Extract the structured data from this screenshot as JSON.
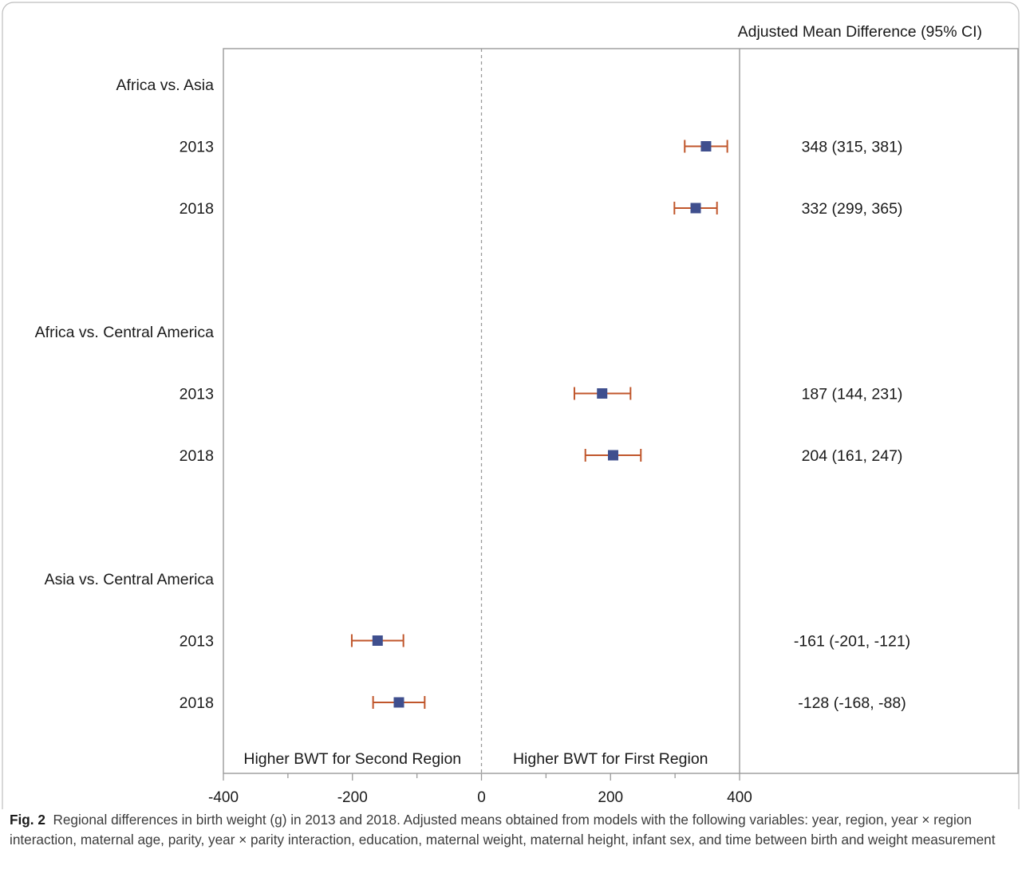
{
  "chart_data": {
    "type": "forest",
    "stat_header": "Adjusted Mean Difference (95% CI)",
    "xlim": [
      -400,
      400
    ],
    "x_ticks": [
      -400,
      -200,
      0,
      200,
      400
    ],
    "reference_line": 0,
    "left_region_label": "Higher BWT for Second Region",
    "right_region_label": "Higher BWT for First Region",
    "groups": [
      {
        "label": "Africa vs. Asia",
        "rows": [
          {
            "year": "2013",
            "estimate": 348,
            "lower": 315,
            "upper": 381,
            "text": "348 (315, 381)"
          },
          {
            "year": "2018",
            "estimate": 332,
            "lower": 299,
            "upper": 365,
            "text": "332 (299, 365)"
          }
        ]
      },
      {
        "label": "Africa vs. Central America",
        "rows": [
          {
            "year": "2013",
            "estimate": 187,
            "lower": 144,
            "upper": 231,
            "text": "187 (144, 231)"
          },
          {
            "year": "2018",
            "estimate": 204,
            "lower": 161,
            "upper": 247,
            "text": "204 (161, 247)"
          }
        ]
      },
      {
        "label": "Asia vs. Central America",
        "rows": [
          {
            "year": "2013",
            "estimate": -161,
            "lower": -201,
            "upper": -121,
            "text": "-161 (-201, -121)"
          },
          {
            "year": "2018",
            "estimate": -128,
            "lower": -168,
            "upper": -88,
            "text": "-128 (-168, -88)"
          }
        ]
      }
    ],
    "colors": {
      "marker": "#3f4f8e",
      "ci": "#c0562b",
      "axis": "#9a9a9a",
      "reference": "#9a9a9a"
    }
  },
  "caption": {
    "label": "Fig. 2",
    "text": "Regional differences in birth weight (g) in 2013 and 2018. Adjusted means obtained from models with the following variables: year, region, year × region interaction, maternal age, parity, year × parity interaction, education, maternal weight, maternal height, infant sex, and time between birth and weight measurement"
  }
}
